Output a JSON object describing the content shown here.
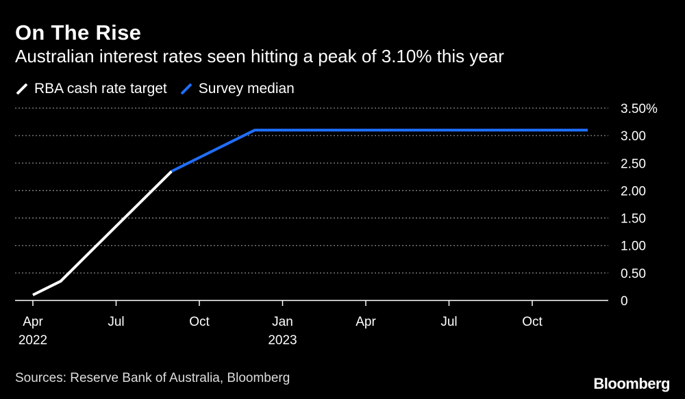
{
  "title": "On The Rise",
  "subtitle": "Australian interest rates seen hitting a peak of 3.10% this year",
  "legend": {
    "items": [
      {
        "label": "RBA cash rate target",
        "color": "#ffffff"
      },
      {
        "label": "Survey median",
        "color": "#1f6fff"
      }
    ]
  },
  "source": "Sources: Reserve Bank of Australia, Bloomberg",
  "brand": "Bloomberg",
  "chart_data": {
    "type": "line",
    "title": "On The Rise",
    "subtitle": "Australian interest rates seen hitting a peak of 3.10% this year",
    "xlabel": "",
    "ylabel": "",
    "x_range": [
      "2022-04",
      "2023-12"
    ],
    "ylim": [
      0,
      3.5
    ],
    "grid": true,
    "y_ticks": [
      {
        "value": 0,
        "label": "0"
      },
      {
        "value": 0.5,
        "label": "0.50"
      },
      {
        "value": 1.0,
        "label": "1.00"
      },
      {
        "value": 1.5,
        "label": "1.50"
      },
      {
        "value": 2.0,
        "label": "2.00"
      },
      {
        "value": 2.5,
        "label": "2.50"
      },
      {
        "value": 3.0,
        "label": "3.00"
      },
      {
        "value": 3.5,
        "label": "3.50%"
      }
    ],
    "x_ticks": [
      {
        "month": 0,
        "label": "Apr",
        "sublabel": "2022"
      },
      {
        "month": 3,
        "label": "Jul",
        "sublabel": ""
      },
      {
        "month": 6,
        "label": "Oct",
        "sublabel": ""
      },
      {
        "month": 9,
        "label": "Jan",
        "sublabel": "2023"
      },
      {
        "month": 12,
        "label": "Apr",
        "sublabel": ""
      },
      {
        "month": 15,
        "label": "Jul",
        "sublabel": ""
      },
      {
        "month": 18,
        "label": "Oct",
        "sublabel": ""
      }
    ],
    "series": [
      {
        "name": "RBA cash rate target",
        "color": "#ffffff",
        "x_months": [
          0.0,
          1.0,
          5.0
        ],
        "values": [
          0.1,
          0.35,
          2.35
        ]
      },
      {
        "name": "Survey median",
        "color": "#1f6fff",
        "x_months": [
          5.0,
          8.0,
          20.0
        ],
        "values": [
          2.35,
          3.1,
          3.1
        ]
      }
    ]
  }
}
